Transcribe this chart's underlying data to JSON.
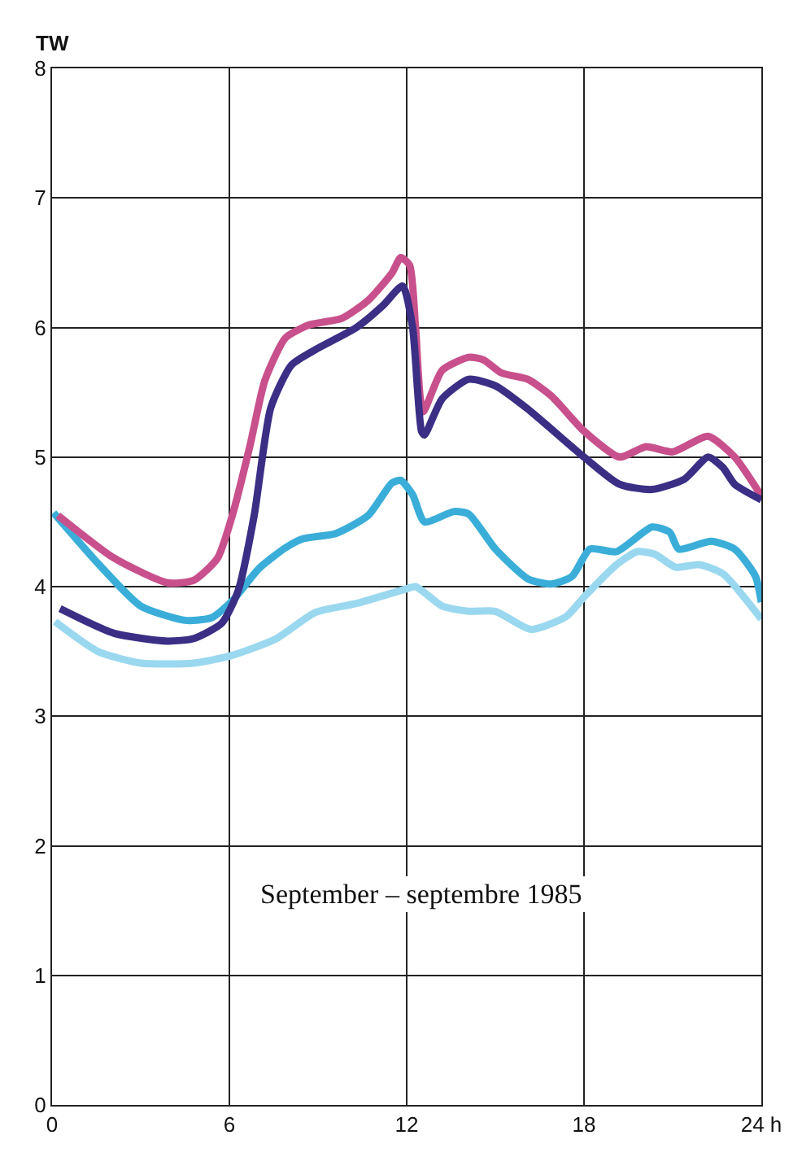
{
  "chart_data": {
    "type": "line",
    "ylabel": "TW",
    "annotations": [
      "September – septembre 1985"
    ],
    "xlim": [
      0,
      24
    ],
    "ylim": [
      0,
      8
    ],
    "xticks": [
      0,
      6,
      12,
      18,
      {
        "value": 24,
        "label": "24 h"
      }
    ],
    "yticks": [
      0,
      1,
      2,
      3,
      4,
      5,
      6,
      7,
      8
    ],
    "grid": true,
    "marker": "none",
    "line_style": "solid",
    "series": [
      {
        "color": "#9ad8ef",
        "x": [
          0.1,
          1.55,
          3.0,
          4.8,
          6.1,
          7.6,
          8.9,
          10.3,
          11.95,
          12.3,
          13.2,
          14.1,
          15.0,
          16.2,
          17.4,
          18.0,
          19.1,
          19.8,
          20.4,
          21.1,
          21.9,
          22.7,
          24
        ],
        "values": [
          3.73,
          3.5,
          3.41,
          3.41,
          3.47,
          3.6,
          3.8,
          3.87,
          3.98,
          4.0,
          3.85,
          3.81,
          3.81,
          3.67,
          3.77,
          3.92,
          4.17,
          4.27,
          4.25,
          4.15,
          4.17,
          4.1,
          3.75
        ]
      },
      {
        "color": "#3aaed8",
        "x": [
          0.05,
          1.55,
          3.0,
          4.5,
          5.4,
          6.1,
          7.0,
          7.9,
          8.5,
          9.6,
          10.7,
          11.5,
          11.8,
          12.2,
          12.6,
          13.6,
          14.1,
          15.0,
          16.1,
          16.9,
          17.6,
          18.2,
          19.1,
          20.3,
          20.9,
          21.2,
          22.3,
          23.1,
          23.8,
          24
        ],
        "values": [
          4.57,
          4.18,
          3.85,
          3.74,
          3.76,
          3.89,
          4.14,
          4.3,
          4.37,
          4.41,
          4.55,
          4.8,
          4.82,
          4.71,
          4.5,
          4.58,
          4.56,
          4.29,
          4.06,
          4.02,
          4.08,
          4.29,
          4.27,
          4.46,
          4.42,
          4.29,
          4.35,
          4.29,
          4.08,
          3.88
        ]
      },
      {
        "color": "#c8508c",
        "x": [
          0.2,
          2.1,
          3.9,
          4.8,
          5.6,
          6.1,
          6.7,
          7.2,
          7.9,
          8.7,
          9.8,
          10.7,
          11.5,
          11.8,
          12.1,
          12.3,
          12.55,
          13.2,
          14.1,
          14.6,
          15.2,
          16.1,
          16.9,
          18.0,
          19.2,
          20.1,
          21.0,
          22.2,
          23.1,
          24
        ],
        "values": [
          4.55,
          4.22,
          4.03,
          4.05,
          4.22,
          4.55,
          5.09,
          5.59,
          5.92,
          6.02,
          6.07,
          6.21,
          6.42,
          6.54,
          6.48,
          6.0,
          5.35,
          5.67,
          5.77,
          5.75,
          5.65,
          5.6,
          5.47,
          5.2,
          5.0,
          5.08,
          5.04,
          5.16,
          5.0,
          4.7
        ]
      },
      {
        "color": "#3a2f85",
        "x": [
          0.27,
          2.1,
          3.9,
          4.8,
          5.75,
          6.3,
          6.84,
          7.4,
          8.1,
          9.0,
          10.3,
          11.2,
          11.86,
          12.2,
          12.5,
          12.6,
          13.2,
          14.1,
          15.0,
          16.1,
          18.0,
          19.2,
          20.3,
          21.4,
          22.2,
          22.7,
          23.1,
          24
        ],
        "values": [
          3.83,
          3.64,
          3.58,
          3.6,
          3.72,
          3.97,
          4.55,
          5.38,
          5.71,
          5.84,
          6.0,
          6.17,
          6.32,
          6.0,
          5.2,
          5.17,
          5.45,
          5.6,
          5.55,
          5.37,
          5.0,
          4.79,
          4.75,
          4.83,
          5.0,
          4.92,
          4.79,
          4.67
        ]
      }
    ]
  }
}
